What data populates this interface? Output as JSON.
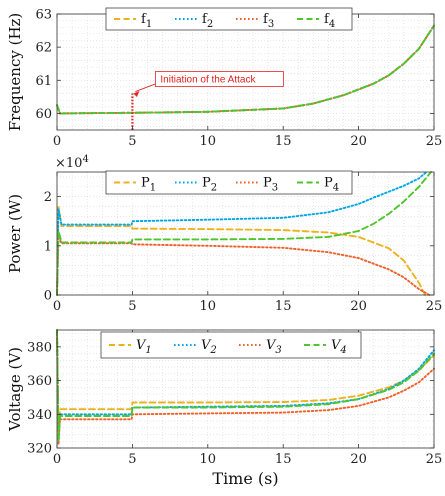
{
  "colors": {
    "s1": "#EDB120",
    "s2": "#00A6E8",
    "s3": "#F0602A",
    "s4": "#4EC52E",
    "attack": "#E32626",
    "grid": "#d8d8d8",
    "axis": "#333333"
  },
  "chart_data": [
    {
      "type": "line",
      "ylabel": "Frequency (Hz)",
      "xlim": [
        0,
        25
      ],
      "ylim": [
        59.5,
        63
      ],
      "xticks": [
        0,
        5,
        10,
        15,
        20,
        25
      ],
      "yticks": [
        60,
        61,
        62,
        63
      ],
      "grid": true,
      "legend": "top-center, horizontal",
      "annotation": {
        "text": "Initiation of the Attack",
        "x": 5,
        "y": 60.6
      },
      "attack_marker": {
        "x": 5,
        "y_from": 59.5,
        "y_to": 60.6
      },
      "series": [
        {
          "name": "f",
          "sub": "1",
          "style": "dashed",
          "color": "#EDB120",
          "points": [
            [
              0,
              60.25
            ],
            [
              0.2,
              60.0
            ],
            [
              5,
              60.02
            ],
            [
              10,
              60.05
            ],
            [
              15,
              60.15
            ],
            [
              17,
              60.3
            ],
            [
              19,
              60.55
            ],
            [
              21,
              60.9
            ],
            [
              22,
              61.15
            ],
            [
              23,
              61.5
            ],
            [
              24,
              61.95
            ],
            [
              25,
              62.65
            ]
          ]
        },
        {
          "name": "f",
          "sub": "2",
          "style": "dotted",
          "color": "#00A6E8",
          "points": [
            [
              0,
              60.25
            ],
            [
              0.2,
              60.0
            ],
            [
              5,
              60.02
            ],
            [
              10,
              60.05
            ],
            [
              15,
              60.15
            ],
            [
              17,
              60.3
            ],
            [
              19,
              60.55
            ],
            [
              21,
              60.9
            ],
            [
              22,
              61.15
            ],
            [
              23,
              61.5
            ],
            [
              24,
              61.95
            ],
            [
              25,
              62.65
            ]
          ]
        },
        {
          "name": "f",
          "sub": "3",
          "style": "dotted",
          "color": "#F0602A",
          "points": [
            [
              0,
              60.25
            ],
            [
              0.2,
              60.0
            ],
            [
              5,
              60.02
            ],
            [
              10,
              60.05
            ],
            [
              15,
              60.15
            ],
            [
              17,
              60.3
            ],
            [
              19,
              60.55
            ],
            [
              21,
              60.9
            ],
            [
              22,
              61.15
            ],
            [
              23,
              61.5
            ],
            [
              24,
              61.95
            ],
            [
              25,
              62.65
            ]
          ]
        },
        {
          "name": "f",
          "sub": "4",
          "style": "dashed",
          "color": "#4EC52E",
          "points": [
            [
              0,
              60.25
            ],
            [
              0.2,
              60.0
            ],
            [
              5,
              60.02
            ],
            [
              10,
              60.05
            ],
            [
              15,
              60.15
            ],
            [
              17,
              60.3
            ],
            [
              19,
              60.55
            ],
            [
              21,
              60.9
            ],
            [
              22,
              61.15
            ],
            [
              23,
              61.5
            ],
            [
              24,
              61.95
            ],
            [
              25,
              62.65
            ]
          ]
        }
      ]
    },
    {
      "type": "line",
      "ylabel": "Power (W)",
      "multiplier": "×10",
      "multiplier_exp": "4",
      "xlim": [
        0,
        25
      ],
      "ylim": [
        0,
        25000
      ],
      "xticks": [
        0,
        5,
        10,
        15,
        20,
        25
      ],
      "yticks": [
        0,
        10000,
        20000
      ],
      "yticklabels": [
        "0",
        "1",
        "2"
      ],
      "grid": true,
      "legend": "top-center, horizontal",
      "series": [
        {
          "name": "P",
          "sub": "1",
          "style": "dashed",
          "color": "#EDB120",
          "points": [
            [
              0,
              0
            ],
            [
              0.1,
              18000
            ],
            [
              0.3,
              14000
            ],
            [
              1,
              14000
            ],
            [
              4.95,
              14000
            ],
            [
              5,
              13500
            ],
            [
              10,
              13400
            ],
            [
              15,
              13200
            ],
            [
              18,
              12700
            ],
            [
              20,
              11800
            ],
            [
              22,
              9500
            ],
            [
              23,
              7000
            ],
            [
              24,
              2500
            ],
            [
              24.4,
              0
            ]
          ]
        },
        {
          "name": "P",
          "sub": "2",
          "style": "dotted",
          "color": "#00A6E8",
          "points": [
            [
              0,
              0
            ],
            [
              0.1,
              17500
            ],
            [
              0.3,
              14300
            ],
            [
              1,
              14300
            ],
            [
              4.95,
              14300
            ],
            [
              5,
              15000
            ],
            [
              10,
              15300
            ],
            [
              15,
              15700
            ],
            [
              18,
              16800
            ],
            [
              20,
              18500
            ],
            [
              21,
              19800
            ],
            [
              22,
              21000
            ],
            [
              23,
              22200
            ],
            [
              24,
              23700
            ],
            [
              24.5,
              25000
            ]
          ]
        },
        {
          "name": "P",
          "sub": "3",
          "style": "dotted",
          "color": "#F0602A",
          "points": [
            [
              0,
              0
            ],
            [
              0.1,
              12000
            ],
            [
              0.3,
              10500
            ],
            [
              1,
              10500
            ],
            [
              4.95,
              10500
            ],
            [
              5,
              10300
            ],
            [
              10,
              10000
            ],
            [
              15,
              9600
            ],
            [
              18,
              8700
            ],
            [
              20,
              7500
            ],
            [
              22,
              5200
            ],
            [
              23,
              3600
            ],
            [
              24,
              1200
            ],
            [
              24.7,
              0
            ]
          ]
        },
        {
          "name": "P",
          "sub": "4",
          "style": "dashed",
          "color": "#4EC52E",
          "points": [
            [
              0,
              0
            ],
            [
              0.1,
              13000
            ],
            [
              0.3,
              10700
            ],
            [
              1,
              10700
            ],
            [
              4.95,
              10700
            ],
            [
              5,
              11300
            ],
            [
              10,
              11300
            ],
            [
              15,
              11400
            ],
            [
              18,
              11800
            ],
            [
              20,
              13000
            ],
            [
              21,
              14500
            ],
            [
              22,
              16500
            ],
            [
              23,
              19000
            ],
            [
              24,
              22000
            ],
            [
              24.8,
              25000
            ]
          ]
        }
      ]
    },
    {
      "type": "line",
      "ylabel": "Voltage (V)",
      "xlabel": "Time (s)",
      "xlim": [
        0,
        25
      ],
      "ylim": [
        320,
        390
      ],
      "xticks": [
        0,
        5,
        10,
        15,
        20,
        25
      ],
      "yticks": [
        320,
        340,
        360,
        380
      ],
      "grid": true,
      "legend": "top-center, horizontal",
      "series": [
        {
          "name": "V",
          "sub": "1",
          "style": "dashed",
          "color": "#EDB120",
          "points": [
            [
              0,
              390
            ],
            [
              0.1,
              330
            ],
            [
              0.2,
              343
            ],
            [
              4.95,
              343
            ],
            [
              5,
              347
            ],
            [
              10,
              347
            ],
            [
              15,
              347.3
            ],
            [
              18,
              348.5
            ],
            [
              20,
              351
            ],
            [
              22,
              356
            ],
            [
              23,
              360
            ],
            [
              24,
              366
            ],
            [
              25,
              375
            ]
          ]
        },
        {
          "name": "V",
          "sub": "2",
          "style": "dotted",
          "color": "#00A6E8",
          "points": [
            [
              0,
              390
            ],
            [
              0.1,
              326
            ],
            [
              0.2,
              340
            ],
            [
              4.95,
              340
            ],
            [
              5,
              344
            ],
            [
              10,
              344.5
            ],
            [
              15,
              345
            ],
            [
              18,
              346.5
            ],
            [
              20,
              349
            ],
            [
              22,
              355
            ],
            [
              23,
              360
            ],
            [
              24,
              367
            ],
            [
              25,
              378
            ]
          ]
        },
        {
          "name": "V",
          "sub": "3",
          "style": "dotted",
          "color": "#F0602A",
          "points": [
            [
              0,
              390
            ],
            [
              0.1,
              322
            ],
            [
              0.2,
              337
            ],
            [
              4.95,
              337
            ],
            [
              5,
              340
            ],
            [
              10,
              340.5
            ],
            [
              15,
              341
            ],
            [
              18,
              342.5
            ],
            [
              20,
              345
            ],
            [
              22,
              350
            ],
            [
              23,
              354
            ],
            [
              24,
              359
            ],
            [
              25,
              367
            ]
          ]
        },
        {
          "name": "V",
          "sub": "4",
          "style": "dashed",
          "color": "#4EC52E",
          "points": [
            [
              0,
              390
            ],
            [
              0.1,
              324
            ],
            [
              0.2,
              339
            ],
            [
              4.95,
              339
            ],
            [
              5,
              344
            ],
            [
              10,
              344
            ],
            [
              15,
              344.5
            ],
            [
              18,
              346
            ],
            [
              20,
              349
            ],
            [
              22,
              354.5
            ],
            [
              23,
              359
            ],
            [
              24,
              366
            ],
            [
              25,
              376
            ]
          ]
        }
      ]
    }
  ]
}
